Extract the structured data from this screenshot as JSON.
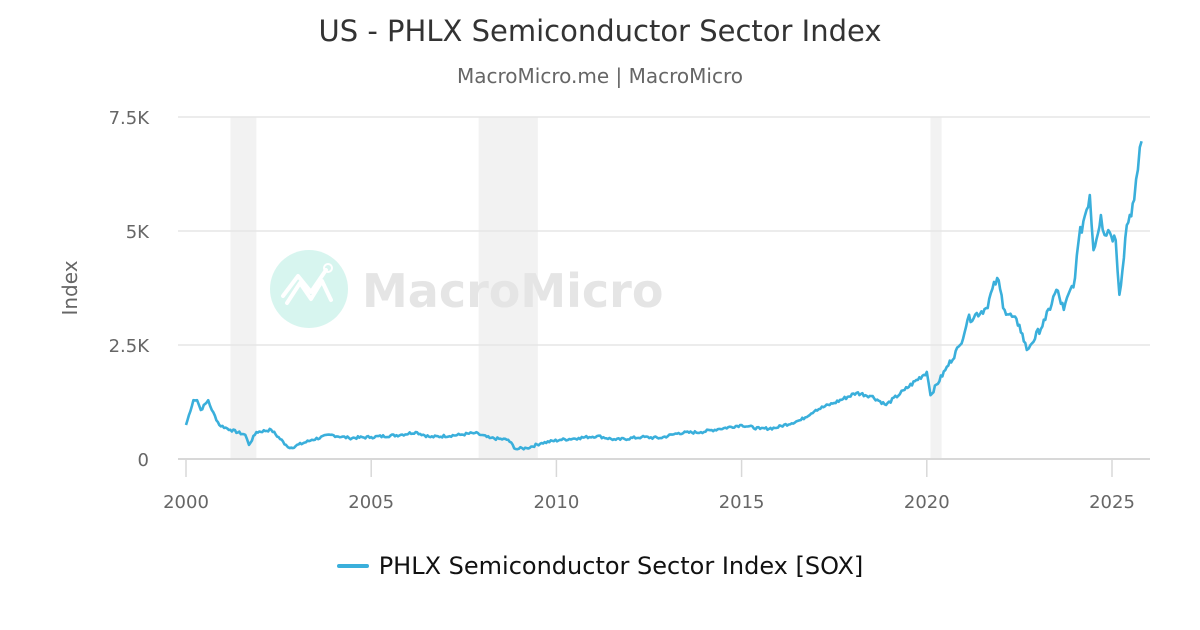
{
  "header": {
    "title": "US - PHLX Semiconductor Sector Index",
    "subtitle": "MacroMicro.me | MacroMicro"
  },
  "watermark": {
    "text": "MacroMicro",
    "icon": "macromicro-logo-icon",
    "icon_color": "#d7f5ef"
  },
  "legend": {
    "items": [
      {
        "label": "PHLX Semiconductor Sector Index [SOX]",
        "color": "#3aafdb"
      }
    ]
  },
  "colors": {
    "series": "#3aafdb",
    "grid": "#e6e6e6",
    "recession_band": "#f2f2f2",
    "axis_text": "#666666",
    "title_text": "#333333"
  },
  "chart_data": {
    "type": "line",
    "title": "US - PHLX Semiconductor Sector Index",
    "subtitle": "MacroMicro.me | MacroMicro",
    "xlabel": "",
    "ylabel": "Index",
    "x_ticks": [
      "2000",
      "2005",
      "2010",
      "2015",
      "2020",
      "2025"
    ],
    "y_ticks": [
      "0",
      "2.5K",
      "5K",
      "7.5K"
    ],
    "y_tick_values": [
      0,
      2500,
      5000,
      7500
    ],
    "ylim": [
      0,
      7500
    ],
    "xlim": [
      1999.8,
      2026.2
    ],
    "grid": {
      "horizontal": true,
      "vertical": false
    },
    "legend_position": "bottom",
    "shaded_periods": [
      {
        "label": "recession",
        "start": 2001.2,
        "end": 2001.9
      },
      {
        "label": "recession",
        "start": 2007.9,
        "end": 2009.5
      },
      {
        "label": "recession",
        "start": 2020.1,
        "end": 2020.4
      }
    ],
    "series": [
      {
        "name": "PHLX Semiconductor Sector Index [SOX]",
        "color": "#3aafdb",
        "x": [
          2000.0,
          2000.2,
          2000.3,
          2000.4,
          2000.6,
          2000.7,
          2000.9,
          2001.2,
          2001.6,
          2001.7,
          2001.9,
          2002.3,
          2002.7,
          2002.8,
          2003.4,
          2003.9,
          2004.4,
          2005.0,
          2005.8,
          2006.2,
          2006.6,
          2007.4,
          2007.8,
          2008.2,
          2008.7,
          2008.9,
          2009.2,
          2009.6,
          2010.1,
          2010.6,
          2011.1,
          2011.6,
          2012.3,
          2012.8,
          2013.3,
          2013.9,
          2014.4,
          2015.0,
          2015.5,
          2015.9,
          2016.6,
          2017.0,
          2017.5,
          2018.1,
          2018.5,
          2018.9,
          2019.4,
          2020.0,
          2020.1,
          2020.5,
          2020.9,
          2021.1,
          2021.6,
          2021.9,
          2022.1,
          2022.5,
          2022.7,
          2022.8,
          2023.2,
          2023.5,
          2023.7,
          2024.0,
          2024.1,
          2024.4,
          2024.5,
          2024.7,
          2024.8,
          2024.9,
          2025.1,
          2025.2,
          2025.4,
          2025.6,
          2025.7,
          2025.8
        ],
        "values": [
          745,
          1290,
          1290,
          1075,
          1290,
          1070,
          745,
          640,
          530,
          310,
          590,
          640,
          310,
          240,
          420,
          530,
          460,
          480,
          530,
          590,
          480,
          530,
          570,
          460,
          420,
          220,
          240,
          350,
          420,
          460,
          505,
          420,
          480,
          460,
          570,
          590,
          660,
          745,
          660,
          680,
          855,
          1075,
          1230,
          1450,
          1380,
          1185,
          1515,
          1910,
          1400,
          1950,
          2500,
          3050,
          3310,
          3970,
          3270,
          2940,
          2390,
          2500,
          3050,
          3710,
          3270,
          3970,
          4800,
          5790,
          4580,
          5350,
          4910,
          5020,
          4800,
          3600,
          5130,
          5680,
          6340,
          6970
        ]
      }
    ]
  }
}
